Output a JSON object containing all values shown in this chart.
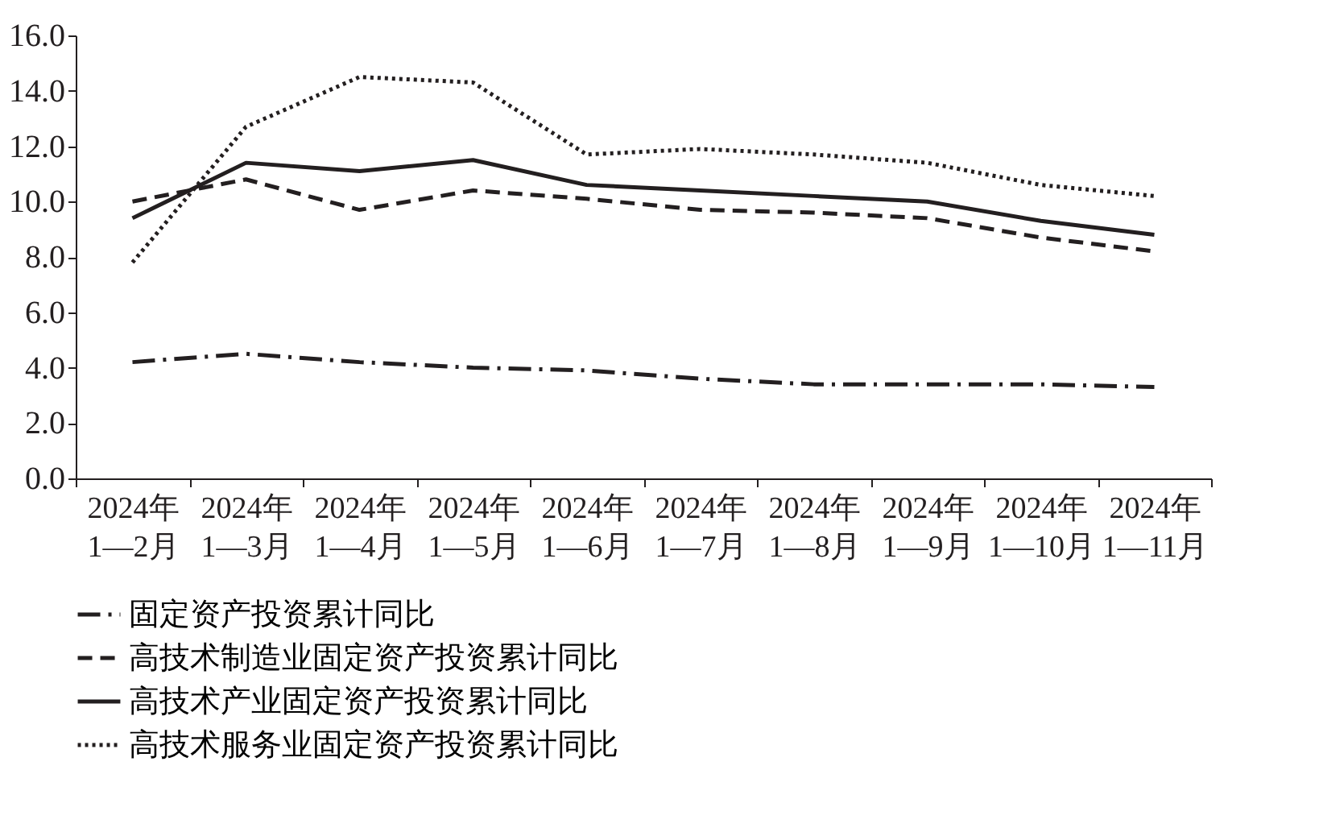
{
  "chart_data": {
    "type": "line",
    "categories": [
      "2024年\n1—2月",
      "2024年\n1—3月",
      "2024年\n1—4月",
      "2024年\n1—5月",
      "2024年\n1—6月",
      "2024年\n1—7月",
      "2024年\n1—8月",
      "2024年\n1—9月",
      "2024年\n1—10月",
      "2024年\n1—11月"
    ],
    "series": [
      {
        "name": "固定资产投资累计同比",
        "color": "#231f20",
        "line_style": "dashdot",
        "values": [
          4.2,
          4.5,
          4.2,
          4.0,
          3.9,
          3.6,
          3.4,
          3.4,
          3.4,
          3.3
        ]
      },
      {
        "name": "高技术制造业固定资产投资累计同比",
        "color": "#231f20",
        "line_style": "dashed",
        "values": [
          10.0,
          10.8,
          9.7,
          10.4,
          10.1,
          9.7,
          9.6,
          9.4,
          8.7,
          8.2
        ]
      },
      {
        "name": "高技术产业固定资产投资累计同比",
        "color": "#231f20",
        "line_style": "solid",
        "values": [
          9.4,
          11.4,
          11.1,
          11.5,
          10.6,
          10.4,
          10.2,
          10.0,
          9.3,
          8.8
        ]
      },
      {
        "name": "高技术服务业固定资产投资累计同比",
        "color": "#231f20",
        "line_style": "dotted",
        "values": [
          7.8,
          12.7,
          14.5,
          14.3,
          11.7,
          11.9,
          11.7,
          11.4,
          10.6,
          10.2
        ]
      }
    ],
    "ylim": [
      0,
      16
    ],
    "yticks": [
      {
        "value": 0,
        "label": "0.0"
      },
      {
        "value": 2,
        "label": "2.0"
      },
      {
        "value": 4,
        "label": "4.0"
      },
      {
        "value": 6,
        "label": "6.0"
      },
      {
        "value": 8,
        "label": "8.0"
      },
      {
        "value": 10,
        "label": "10.0"
      },
      {
        "value": 12,
        "label": "12.0"
      },
      {
        "value": 14,
        "label": "14.0"
      },
      {
        "value": 16,
        "label": "16.0"
      }
    ],
    "grid": false,
    "legend": "bottom",
    "marker": "none"
  }
}
